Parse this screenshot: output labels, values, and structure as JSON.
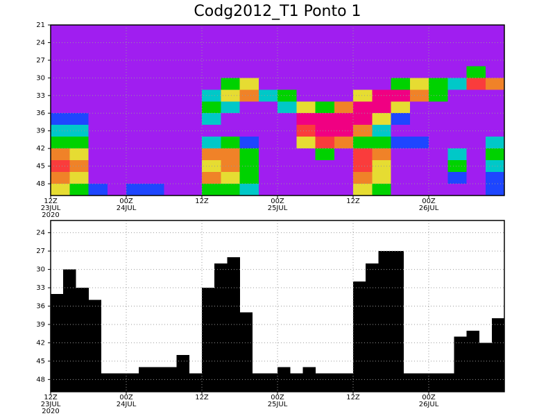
{
  "chart_data": [
    {
      "type": "heatmap",
      "title": "Codg2012_T1 Ponto 1",
      "colors": [
        "#a01ef0",
        "#1e46ff",
        "#00c8c8",
        "#00d200",
        "#e6dc32",
        "#f08228",
        "#fa3c3c",
        "#f00082"
      ],
      "x": [
        1.5,
        4.5,
        7.5,
        10.5,
        13.5,
        16.5,
        19.5,
        22.5,
        25.5,
        28.5,
        31.5,
        34.5,
        37.5,
        40.5,
        43.5,
        46.5,
        49.5,
        52.5,
        55.5,
        58.5,
        61.5,
        64.5,
        67.5,
        70.5
      ],
      "y": [
        21,
        23,
        25,
        27,
        29,
        31,
        33,
        35,
        37,
        39,
        41,
        43,
        45,
        47,
        49
      ],
      "z": [
        [
          0,
          0,
          0,
          0,
          0,
          0,
          0,
          0,
          0,
          0,
          0,
          0,
          0,
          0,
          0,
          0,
          0,
          0,
          0,
          0,
          0,
          0,
          0,
          0
        ],
        [
          0,
          0,
          0,
          0,
          0,
          0,
          0,
          0,
          0,
          0,
          0,
          0,
          0,
          0,
          0,
          0,
          0,
          0,
          0,
          0,
          0,
          0,
          0,
          0
        ],
        [
          0,
          0,
          0,
          0,
          0,
          0,
          0,
          0,
          0,
          0,
          0,
          0,
          0,
          0,
          0,
          0,
          0,
          0,
          0,
          0,
          0,
          0,
          0,
          0
        ],
        [
          0,
          0,
          0,
          0,
          0,
          0,
          0,
          0,
          0,
          0,
          0,
          0,
          0,
          0,
          0,
          0,
          0,
          0,
          0,
          0,
          0,
          0,
          0,
          0
        ],
        [
          0,
          0,
          0,
          0,
          0,
          0,
          0,
          0,
          0,
          0,
          0,
          0,
          0,
          0,
          0,
          0,
          0,
          0,
          0,
          0,
          0,
          0,
          3,
          0
        ],
        [
          0,
          0,
          0,
          0,
          0,
          0,
          0,
          0,
          0,
          3,
          4,
          0,
          0,
          0,
          0,
          0,
          0,
          0,
          3,
          4,
          3,
          2,
          6,
          5
        ],
        [
          0,
          0,
          0,
          0,
          0,
          0,
          0,
          0,
          2,
          4,
          5,
          2,
          3,
          0,
          0,
          0,
          4,
          7,
          7,
          5,
          3,
          0,
          0,
          0
        ],
        [
          0,
          0,
          0,
          0,
          0,
          0,
          0,
          0,
          3,
          2,
          0,
          0,
          2,
          4,
          3,
          5,
          7,
          7,
          4,
          0,
          0,
          0,
          0,
          0
        ],
        [
          1,
          1,
          0,
          0,
          0,
          0,
          0,
          0,
          2,
          0,
          0,
          0,
          0,
          7,
          7,
          7,
          7,
          4,
          1,
          0,
          0,
          0,
          0,
          0
        ],
        [
          2,
          2,
          0,
          0,
          0,
          0,
          0,
          0,
          0,
          0,
          0,
          0,
          0,
          6,
          7,
          7,
          5,
          2,
          0,
          0,
          0,
          0,
          0,
          0
        ],
        [
          3,
          3,
          0,
          0,
          0,
          0,
          0,
          0,
          2,
          3,
          1,
          0,
          0,
          4,
          6,
          5,
          3,
          3,
          1,
          1,
          0,
          0,
          0,
          2
        ],
        [
          5,
          4,
          0,
          0,
          0,
          0,
          0,
          0,
          5,
          5,
          3,
          0,
          0,
          0,
          3,
          0,
          6,
          5,
          0,
          0,
          0,
          2,
          0,
          3
        ],
        [
          6,
          5,
          0,
          0,
          0,
          0,
          0,
          0,
          4,
          5,
          3,
          0,
          0,
          0,
          0,
          0,
          6,
          4,
          0,
          0,
          0,
          3,
          0,
          2
        ],
        [
          5,
          4,
          0,
          0,
          0,
          0,
          0,
          0,
          5,
          4,
          3,
          0,
          0,
          0,
          0,
          0,
          5,
          4,
          0,
          0,
          0,
          1,
          0,
          1
        ],
        [
          4,
          3,
          1,
          0,
          1,
          1,
          0,
          0,
          3,
          3,
          2,
          0,
          0,
          0,
          0,
          0,
          4,
          3,
          0,
          0,
          0,
          0,
          0,
          1
        ]
      ],
      "xlim": [
        0,
        72
      ],
      "xticks": [
        {
          "value": 0,
          "label": "12Z\n23JUL\n2020"
        },
        {
          "value": 12,
          "label": "00Z\n24JUL"
        },
        {
          "value": 24,
          "label": "12Z"
        },
        {
          "value": 36,
          "label": "00Z\n25JUL"
        },
        {
          "value": 48,
          "label": "12Z"
        },
        {
          "value": 60,
          "label": "00Z\n26JUL"
        }
      ],
      "ylim": [
        50,
        21
      ],
      "yticks": [
        21,
        24,
        27,
        30,
        33,
        36,
        39,
        42,
        45,
        48
      ],
      "grid": true
    },
    {
      "type": "bar",
      "color": "#000000",
      "x": [
        1,
        3,
        5,
        7,
        9,
        11,
        13,
        15,
        17,
        19,
        21,
        23,
        25,
        27,
        29,
        31,
        33,
        35,
        37,
        39,
        41,
        43,
        45,
        47,
        49,
        51,
        53,
        55,
        57,
        59,
        61,
        63,
        65,
        67,
        69,
        71
      ],
      "values": [
        34,
        30,
        33,
        35,
        47,
        47,
        47,
        46,
        46,
        46,
        44,
        47,
        33,
        29,
        28,
        37,
        47,
        47,
        46,
        47,
        46,
        47,
        47,
        47,
        32,
        29,
        27,
        27,
        47,
        47,
        47,
        47,
        41,
        40,
        42,
        38
      ],
      "xlim": [
        0,
        72
      ],
      "xticks": [
        {
          "value": 0,
          "label": "12Z\n23JUL\n2020"
        },
        {
          "value": 12,
          "label": "00Z\n24JUL"
        },
        {
          "value": 24,
          "label": "12Z"
        },
        {
          "value": 36,
          "label": "00Z\n25JUL"
        },
        {
          "value": 48,
          "label": "12Z"
        },
        {
          "value": 60,
          "label": "00Z\n26JUL"
        }
      ],
      "ylim": [
        50,
        22
      ],
      "yticks": [
        24,
        27,
        30,
        33,
        36,
        39,
        42,
        45,
        48
      ],
      "grid": true
    }
  ]
}
